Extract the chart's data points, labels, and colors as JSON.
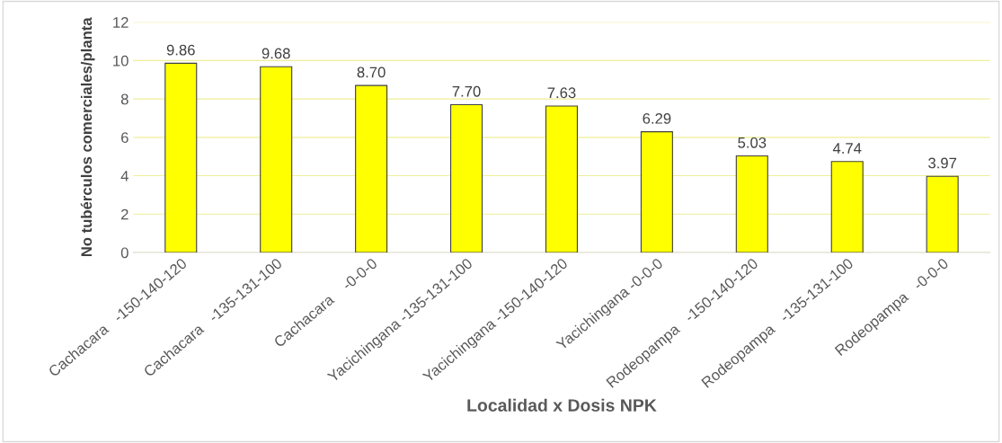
{
  "chart_data": {
    "type": "bar",
    "xlabel": "Localidad x Dosis NPK",
    "ylabel": "No tubérculos comerciales/planta",
    "categories": [
      "Cachacara   -150-140-120",
      "Cachacara   -135-131-100",
      "Cachacara    -0-0-0",
      "Yacichingana -135-131-100",
      "Yacichingana -150-140-120",
      "Yacichingana -0-0-0",
      "Rodeopampa   -150-140-120",
      "Rodeopampa   -135-131-100",
      "Rodeopampa   -0-0-0"
    ],
    "values": [
      9.86,
      9.68,
      8.7,
      7.7,
      7.63,
      6.29,
      5.03,
      4.74,
      3.97
    ],
    "value_labels": [
      "9.86",
      "9.68",
      "8.70",
      "7.70",
      "7.63",
      "6.29",
      "5.03",
      "4.74",
      "3.97"
    ],
    "color": "#ffff00",
    "ylim": [
      0,
      12
    ],
    "yticks": [
      0,
      2,
      4,
      6,
      8,
      10,
      12
    ],
    "grid": "y"
  }
}
